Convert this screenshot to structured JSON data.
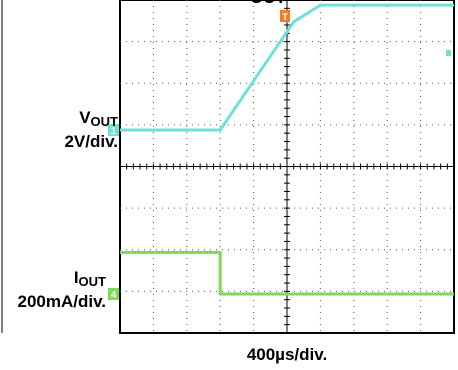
{
  "scope": {
    "top_label": "OUT",
    "trigger_marker": "T",
    "time_scale": "400µs/div.",
    "channels": [
      {
        "name": "V",
        "subscript": "OUT",
        "scale": "2V/div.",
        "marker": "1",
        "color": "#6fe0d6"
      },
      {
        "name": "I",
        "subscript": "OUT",
        "scale": "200mA/div.",
        "marker": "4",
        "color": "#7ed957"
      }
    ]
  },
  "chart_data": {
    "type": "line",
    "title": "",
    "xlabel": "400µs/div.",
    "x_unit": "div",
    "xlim": [
      0,
      10
    ],
    "grid": true,
    "series": [
      {
        "name": "V OUT",
        "y_unit": "V",
        "x": [
          0,
          3.0,
          5.2,
          6.0,
          10
        ],
        "values": [
          0,
          0,
          5.2,
          6.0,
          6.0
        ]
      },
      {
        "name": "I OUT",
        "y_unit": "mA",
        "x": [
          0,
          3.0,
          3.0,
          10
        ],
        "values": [
          200,
          200,
          0,
          0
        ]
      }
    ]
  }
}
